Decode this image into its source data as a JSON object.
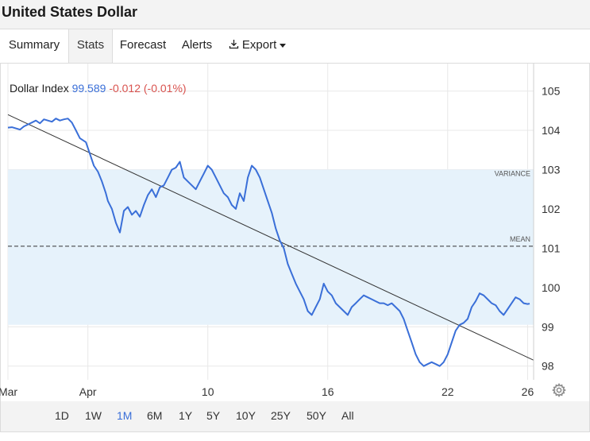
{
  "title": "United States Dollar",
  "tabs": [
    {
      "label": "Summary"
    },
    {
      "label": "Stats",
      "active": true
    },
    {
      "label": "Forecast"
    },
    {
      "label": "Alerts"
    },
    {
      "label": "Export"
    }
  ],
  "legend": {
    "name": "Dollar Index",
    "value": "99.589",
    "change": "-0.012 (-0.01%)"
  },
  "ranges": [
    "1D",
    "1W",
    "1M",
    "6M",
    "1Y",
    "5Y",
    "10Y",
    "25Y",
    "50Y",
    "All"
  ],
  "active_range": "1M",
  "colors": {
    "line": "#3a6fd8",
    "band": "#e6f2fb",
    "change_negative": "#d9534f",
    "trend": "#333333"
  },
  "chart_data": {
    "type": "line",
    "y_ticks": [
      98,
      99,
      100,
      101,
      102,
      103,
      104,
      105
    ],
    "ylim": [
      97.65,
      105.7
    ],
    "x_ticks": [
      {
        "label": "Mar",
        "day": 0
      },
      {
        "label": "Apr",
        "day": 4
      },
      {
        "label": "10",
        "day": 10
      },
      {
        "label": "16",
        "day": 16
      },
      {
        "label": "22",
        "day": 22
      },
      {
        "label": "26",
        "day": 26
      }
    ],
    "xlim": [
      0,
      26.3
    ],
    "annotations": {
      "mean": {
        "label": "MEAN",
        "value": 101.05
      },
      "variance": {
        "label": "VARIANCE",
        "upper": 103.0,
        "lower": 99.05
      },
      "trend": {
        "start": [
          0,
          104.4
        ],
        "end": [
          26.3,
          98.15
        ]
      }
    },
    "series": [
      {
        "values": [
          [
            0.0,
            104.07
          ],
          [
            0.2,
            104.08
          ],
          [
            0.4,
            104.05
          ],
          [
            0.6,
            104.02
          ],
          [
            0.8,
            104.1
          ],
          [
            1.0,
            104.15
          ],
          [
            1.2,
            104.2
          ],
          [
            1.4,
            104.25
          ],
          [
            1.6,
            104.18
          ],
          [
            1.8,
            104.28
          ],
          [
            2.0,
            104.25
          ],
          [
            2.2,
            104.22
          ],
          [
            2.4,
            104.3
          ],
          [
            2.6,
            104.25
          ],
          [
            2.8,
            104.28
          ],
          [
            3.0,
            104.3
          ],
          [
            3.2,
            104.2
          ],
          [
            3.4,
            104.0
          ],
          [
            3.6,
            103.8
          ],
          [
            3.9,
            103.7
          ],
          [
            4.1,
            103.4
          ],
          [
            4.3,
            103.1
          ],
          [
            4.5,
            102.95
          ],
          [
            4.7,
            102.7
          ],
          [
            4.9,
            102.4
          ],
          [
            5.0,
            102.2
          ],
          [
            5.2,
            102.0
          ],
          [
            5.4,
            101.65
          ],
          [
            5.6,
            101.4
          ],
          [
            5.8,
            101.95
          ],
          [
            6.0,
            102.05
          ],
          [
            6.2,
            101.85
          ],
          [
            6.4,
            101.95
          ],
          [
            6.6,
            101.8
          ],
          [
            6.8,
            102.1
          ],
          [
            7.0,
            102.35
          ],
          [
            7.2,
            102.5
          ],
          [
            7.4,
            102.3
          ],
          [
            7.6,
            102.55
          ],
          [
            7.8,
            102.6
          ],
          [
            8.0,
            102.8
          ],
          [
            8.2,
            103.0
          ],
          [
            8.4,
            103.05
          ],
          [
            8.6,
            103.2
          ],
          [
            8.8,
            102.8
          ],
          [
            9.0,
            102.7
          ],
          [
            9.2,
            102.6
          ],
          [
            9.4,
            102.5
          ],
          [
            9.6,
            102.7
          ],
          [
            9.8,
            102.9
          ],
          [
            10.0,
            103.1
          ],
          [
            10.2,
            103.0
          ],
          [
            10.4,
            102.8
          ],
          [
            10.6,
            102.6
          ],
          [
            10.8,
            102.4
          ],
          [
            11.0,
            102.3
          ],
          [
            11.2,
            102.1
          ],
          [
            11.4,
            102.0
          ],
          [
            11.6,
            102.4
          ],
          [
            11.8,
            102.2
          ],
          [
            12.0,
            102.8
          ],
          [
            12.2,
            103.1
          ],
          [
            12.4,
            103.0
          ],
          [
            12.6,
            102.8
          ],
          [
            12.8,
            102.5
          ],
          [
            13.0,
            102.2
          ],
          [
            13.2,
            101.9
          ],
          [
            13.4,
            101.5
          ],
          [
            13.6,
            101.2
          ],
          [
            13.8,
            101.0
          ],
          [
            14.0,
            100.6
          ],
          [
            14.2,
            100.35
          ],
          [
            14.4,
            100.1
          ],
          [
            14.6,
            99.9
          ],
          [
            14.8,
            99.7
          ],
          [
            15.0,
            99.4
          ],
          [
            15.2,
            99.3
          ],
          [
            15.4,
            99.5
          ],
          [
            15.6,
            99.7
          ],
          [
            15.8,
            100.1
          ],
          [
            16.0,
            99.9
          ],
          [
            16.2,
            99.8
          ],
          [
            16.4,
            99.6
          ],
          [
            16.6,
            99.5
          ],
          [
            16.8,
            99.4
          ],
          [
            17.0,
            99.3
          ],
          [
            17.2,
            99.5
          ],
          [
            17.4,
            99.6
          ],
          [
            17.6,
            99.7
          ],
          [
            17.8,
            99.8
          ],
          [
            18.0,
            99.75
          ],
          [
            18.2,
            99.7
          ],
          [
            18.4,
            99.65
          ],
          [
            18.6,
            99.6
          ],
          [
            18.8,
            99.6
          ],
          [
            19.0,
            99.55
          ],
          [
            19.2,
            99.6
          ],
          [
            19.4,
            99.5
          ],
          [
            19.6,
            99.4
          ],
          [
            19.8,
            99.2
          ],
          [
            20.0,
            98.9
          ],
          [
            20.2,
            98.6
          ],
          [
            20.4,
            98.3
          ],
          [
            20.6,
            98.1
          ],
          [
            20.8,
            98.0
          ],
          [
            21.0,
            98.05
          ],
          [
            21.2,
            98.1
          ],
          [
            21.4,
            98.05
          ],
          [
            21.6,
            98.0
          ],
          [
            21.8,
            98.1
          ],
          [
            22.0,
            98.3
          ],
          [
            22.2,
            98.6
          ],
          [
            22.4,
            98.9
          ],
          [
            22.6,
            99.05
          ],
          [
            22.8,
            99.1
          ],
          [
            23.0,
            99.2
          ],
          [
            23.2,
            99.5
          ],
          [
            23.4,
            99.65
          ],
          [
            23.6,
            99.85
          ],
          [
            23.8,
            99.8
          ],
          [
            24.0,
            99.7
          ],
          [
            24.2,
            99.6
          ],
          [
            24.4,
            99.55
          ],
          [
            24.6,
            99.4
          ],
          [
            24.8,
            99.3
          ],
          [
            25.0,
            99.45
          ],
          [
            25.2,
            99.6
          ],
          [
            25.4,
            99.75
          ],
          [
            25.6,
            99.7
          ],
          [
            25.8,
            99.6
          ],
          [
            26.0,
            99.58
          ],
          [
            26.1,
            99.59
          ]
        ]
      }
    ]
  }
}
